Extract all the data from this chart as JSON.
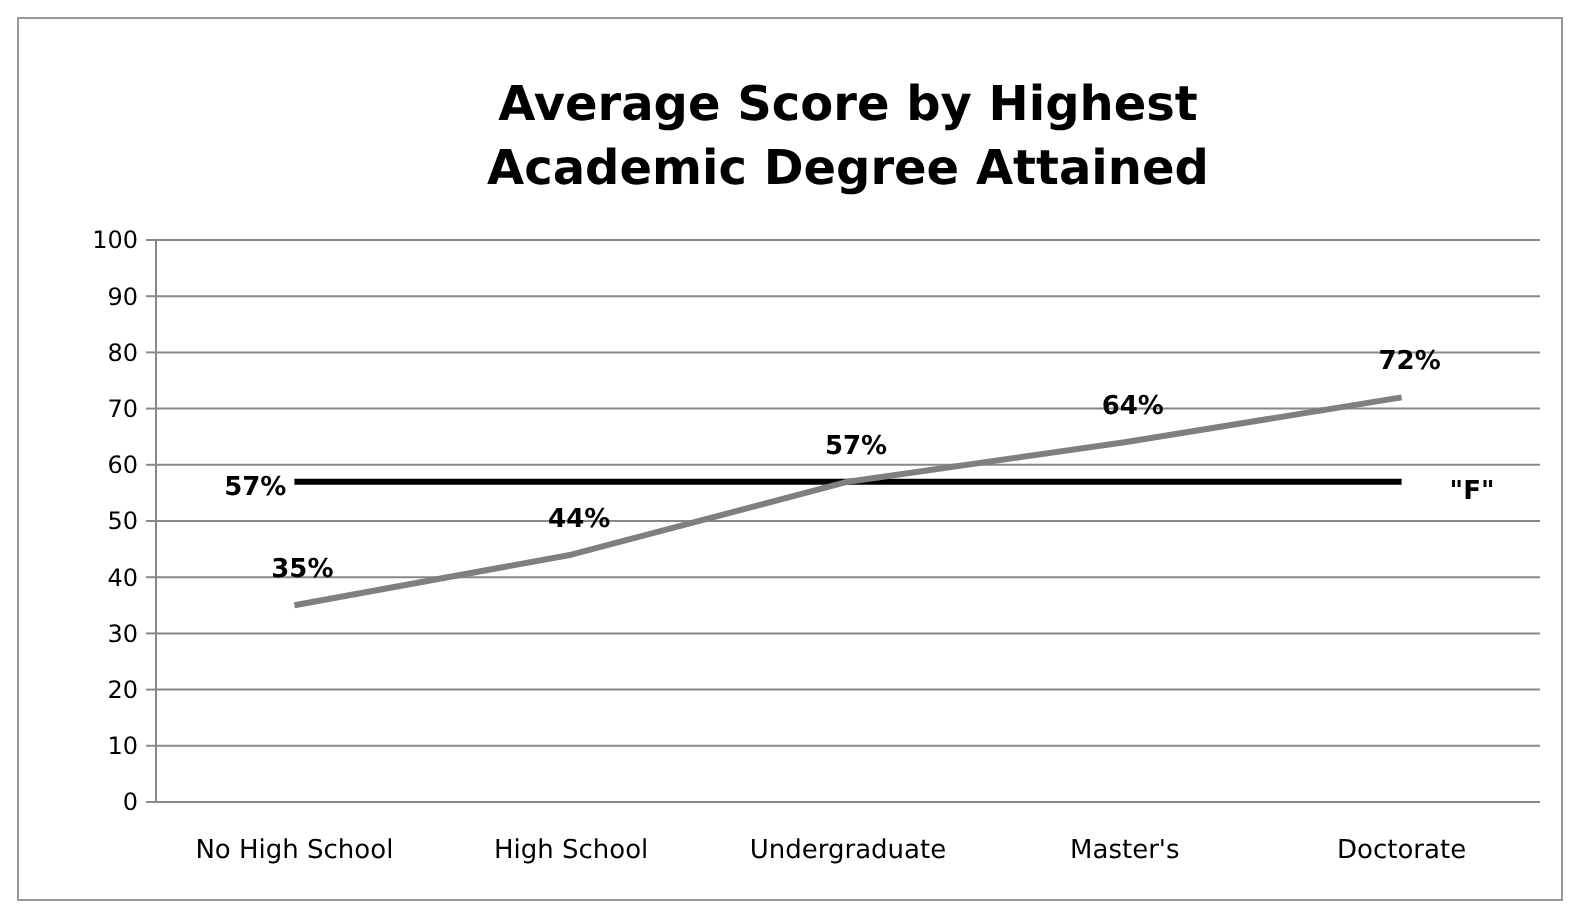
{
  "chart_data": {
    "type": "line",
    "title": "Average Score by Highest\nAcademic Degree Attained",
    "categories": [
      "No High School",
      "High School",
      "Undergraduate",
      "Master's",
      "Doctorate"
    ],
    "series": [
      {
        "color": "#7f7f7f",
        "values": [
          35,
          44,
          57,
          64,
          72
        ],
        "value_labels": [
          "35%",
          "44%",
          "57%",
          "64%",
          "72%"
        ]
      }
    ],
    "ylim": [
      0,
      100
    ],
    "yticks": [
      0,
      10,
      20,
      30,
      40,
      50,
      60,
      70,
      80,
      90,
      100
    ],
    "grid": "y",
    "marker": "none",
    "line_style": "solid",
    "ref_lines": [
      {
        "axis": "y",
        "value": 57,
        "label": "\"F\"",
        "color": "#000000",
        "line_style": "solid"
      }
    ],
    "annotations": [
      "57%"
    ]
  }
}
